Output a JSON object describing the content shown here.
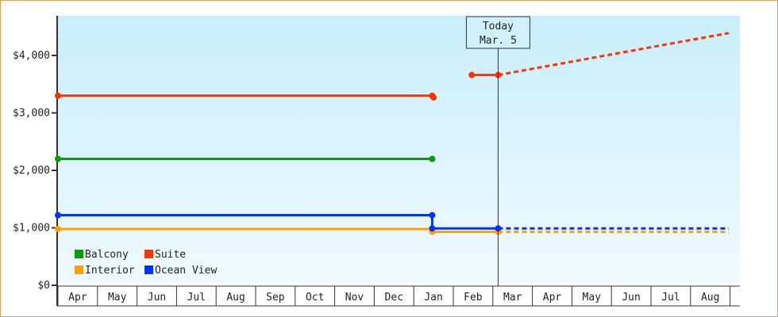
{
  "chart_data": {
    "type": "line",
    "x_categories": [
      "Apr",
      "May",
      "Jun",
      "Jul",
      "Aug",
      "Sep",
      "Oct",
      "Nov",
      "Dec",
      "Jan",
      "Feb",
      "Mar",
      "Apr",
      "May",
      "Jun",
      "Jul",
      "Aug"
    ],
    "y_ticks": [
      "$0",
      "$1,000",
      "$2,000",
      "$3,000",
      "$4,000"
    ],
    "ylim": [
      0,
      4700
    ],
    "grid": false,
    "legend_placement": "bottom-left",
    "today_marker": {
      "label_line1": "Today",
      "label_line2": "Mar. 5",
      "x": "Mar 5"
    },
    "series": [
      {
        "name": "Balcony",
        "color": "#00a000",
        "solid": [
          [
            "Apr 1",
            2200
          ],
          [
            "Jan 15",
            2200
          ]
        ],
        "markers": [
          [
            "Apr 1",
            2200
          ],
          [
            "Jan 15",
            2200
          ]
        ],
        "forecast": []
      },
      {
        "name": "Suite",
        "color": "#ff3300",
        "solid": [
          [
            "Apr 1",
            3300
          ],
          [
            "Jan 15",
            3300
          ]
        ],
        "solid2": [
          [
            "Feb 15",
            3660
          ],
          [
            "Mar 5",
            3660
          ]
        ],
        "markers": [
          [
            "Apr 1",
            3300
          ],
          [
            "Jan 15",
            3300
          ],
          [
            "Jan 16",
            3270
          ],
          [
            "Feb 15",
            3660
          ],
          [
            "Mar 5",
            3660
          ]
        ],
        "forecast": [
          [
            "Mar 5",
            3660
          ],
          [
            "Aug 30",
            4390
          ]
        ]
      },
      {
        "name": "Interior",
        "color": "#ffa000",
        "solid": [
          [
            "Apr 1",
            980
          ],
          [
            "Jan 15",
            980
          ],
          [
            "Jan 15",
            930
          ],
          [
            "Mar 5",
            930
          ]
        ],
        "markers": [
          [
            "Apr 1",
            980
          ],
          [
            "Jan 15",
            930
          ],
          [
            "Mar 5",
            930
          ]
        ],
        "forecast": [
          [
            "Mar 5",
            930
          ],
          [
            "Aug 30",
            930
          ]
        ]
      },
      {
        "name": "Ocean View",
        "color": "#0033ff",
        "solid": [
          [
            "Apr 1",
            1220
          ],
          [
            "Jan 15",
            1220
          ],
          [
            "Jan 15",
            990
          ],
          [
            "Mar 5",
            990
          ]
        ],
        "markers": [
          [
            "Apr 1",
            1220
          ],
          [
            "Jan 15",
            1220
          ],
          [
            "Jan 15",
            990
          ],
          [
            "Mar 5",
            990
          ]
        ],
        "forecast": [
          [
            "Mar 5",
            990
          ],
          [
            "Aug 30",
            990
          ]
        ]
      }
    ]
  }
}
